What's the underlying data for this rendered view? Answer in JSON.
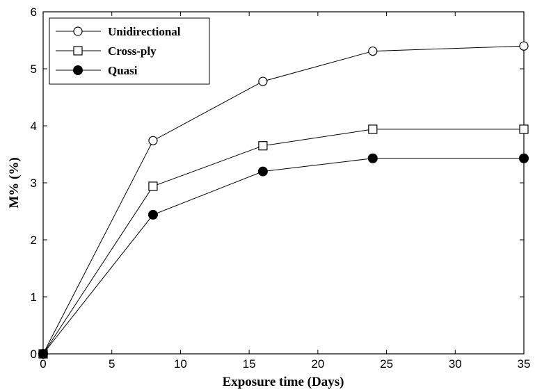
{
  "chart_data": {
    "type": "line",
    "title": "",
    "xlabel": "Exposure time (Days)",
    "ylabel": "M% (%)",
    "xlim": [
      0,
      35
    ],
    "ylim": [
      0,
      6
    ],
    "xticks": [
      0,
      5,
      10,
      15,
      20,
      25,
      30,
      35
    ],
    "yticks": [
      0,
      1,
      2,
      3,
      4,
      5,
      6
    ],
    "grid": false,
    "legend_position": "top-left",
    "x": [
      0,
      8,
      16,
      24,
      35
    ],
    "series": [
      {
        "name": "Unidirectional",
        "marker": "open-circle",
        "values": [
          0,
          3.74,
          4.78,
          5.31,
          5.4
        ]
      },
      {
        "name": "Cross-ply",
        "marker": "open-square",
        "values": [
          0,
          2.94,
          3.65,
          3.94,
          3.94
        ]
      },
      {
        "name": "Quasi",
        "marker": "filled-circle",
        "values": [
          0,
          2.44,
          3.2,
          3.43,
          3.43
        ]
      }
    ],
    "colors": {
      "line": "#000000",
      "background": "#ffffff"
    }
  }
}
